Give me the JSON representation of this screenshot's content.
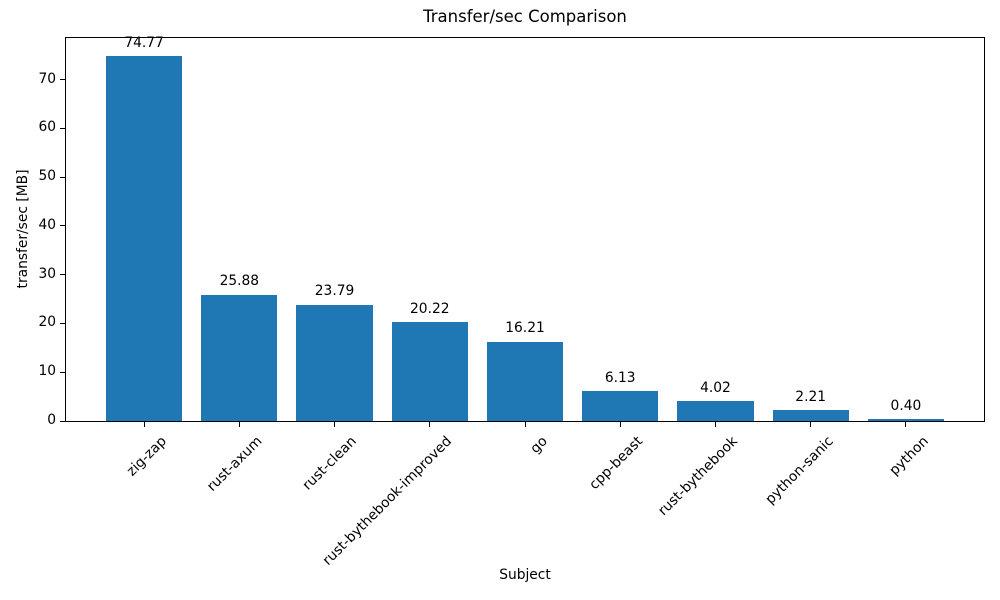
{
  "chart_data": {
    "type": "bar",
    "title": "Transfer/sec Comparison",
    "xlabel": "Subject",
    "ylabel": "transfer/sec [MB]",
    "categories": [
      "zig-zap",
      "rust-axum",
      "rust-clean",
      "rust-bythebook-improved",
      "go",
      "cpp-beast",
      "rust-bythebook",
      "python-sanic",
      "python"
    ],
    "values": [
      74.77,
      25.88,
      23.79,
      20.22,
      16.21,
      6.13,
      4.02,
      2.21,
      0.4
    ],
    "value_labels": [
      "74.77",
      "25.88",
      "23.79",
      "20.22",
      "16.21",
      "6.13",
      "4.02",
      "2.21",
      "0.40"
    ],
    "yticks": [
      0,
      10,
      20,
      30,
      40,
      50,
      60,
      70
    ],
    "ylim": [
      0,
      78.51
    ],
    "bar_color": "#1f77b4",
    "axis_color": "#000000",
    "text_color": "#000000",
    "background_color": "#ffffff",
    "grid": false,
    "legend": "none",
    "x_label_rotation_deg": 45
  }
}
